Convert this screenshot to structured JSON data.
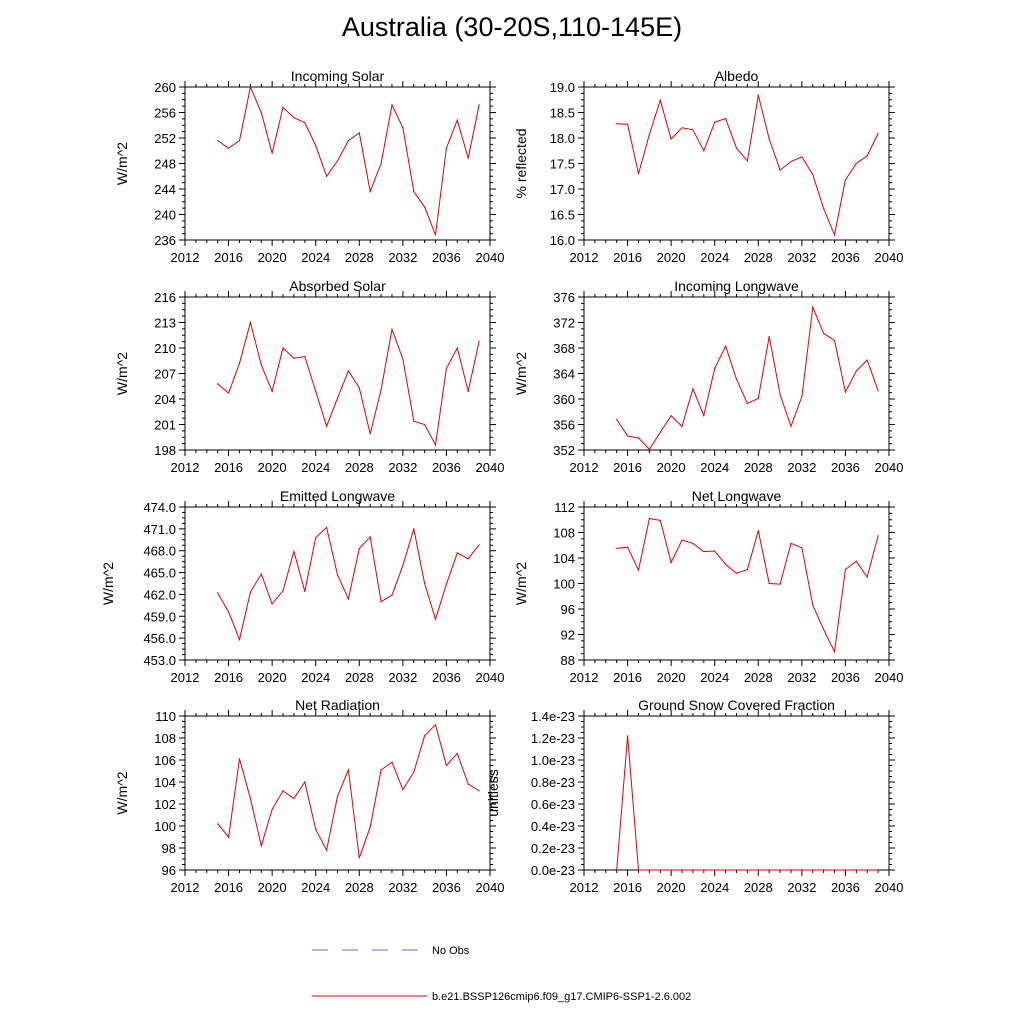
{
  "figure_title": "Australia (30-20S,110-145E)",
  "legend": {
    "obs_label": "No Obs",
    "model_label": "b.e21.BSSP126cmip6.f09_g17.CMIP6-SSP1-2.6.002",
    "obs_color": "#6a6ad8",
    "model_color": "#e00000"
  },
  "chart_data": [
    {
      "id": "incoming-solar",
      "type": "line",
      "title": "Incoming Solar",
      "ylabel": "W/m^2",
      "xlim": [
        2012,
        2040
      ],
      "ylim": [
        236,
        260
      ],
      "x_ticks": [
        2012,
        2016,
        2020,
        2024,
        2028,
        2032,
        2036,
        2040
      ],
      "y_ticks": [
        "236",
        "240",
        "244",
        "248",
        "252",
        "256",
        "260"
      ],
      "x": [
        2015,
        2016,
        2017,
        2018,
        2019,
        2020,
        2021,
        2022,
        2023,
        2024,
        2025,
        2026,
        2027,
        2028,
        2029,
        2030,
        2031,
        2032,
        2033,
        2034,
        2035,
        2036,
        2037,
        2038,
        2039
      ],
      "series": [
        {
          "values": [
            251.6,
            250.4,
            251.6,
            260.0,
            256.0,
            249.6,
            256.8,
            255.2,
            254.4,
            250.8,
            246.0,
            248.4,
            251.6,
            252.8,
            243.6,
            248.0,
            257.2,
            253.6,
            243.6,
            241.2,
            236.8,
            250.4,
            254.8,
            248.8,
            257.2
          ]
        }
      ]
    },
    {
      "id": "albedo",
      "type": "line",
      "title": "Albedo",
      "ylabel": "% reflected",
      "xlim": [
        2012,
        2040
      ],
      "ylim": [
        16.0,
        19.0
      ],
      "x_ticks": [
        2012,
        2016,
        2020,
        2024,
        2028,
        2032,
        2036,
        2040
      ],
      "y_ticks": [
        "16.0",
        "16.5",
        "17.0",
        "17.5",
        "18.0",
        "18.5",
        "19.0"
      ],
      "x": [
        2015,
        2016,
        2017,
        2018,
        2019,
        2020,
        2021,
        2022,
        2023,
        2024,
        2025,
        2026,
        2027,
        2028,
        2029,
        2030,
        2031,
        2032,
        2033,
        2034,
        2035,
        2036,
        2037,
        2038,
        2039
      ],
      "series": [
        {
          "values": [
            18.28,
            18.27,
            17.3,
            18.07,
            18.74,
            17.98,
            18.2,
            18.16,
            17.75,
            18.31,
            18.38,
            17.8,
            17.55,
            18.84,
            17.98,
            17.37,
            17.54,
            17.63,
            17.28,
            16.62,
            16.1,
            17.18,
            17.5,
            17.65,
            18.09
          ]
        }
      ]
    },
    {
      "id": "absorbed-solar",
      "type": "line",
      "title": "Absorbed Solar",
      "ylabel": "W/m^2",
      "xlim": [
        2012,
        2040
      ],
      "ylim": [
        198,
        216
      ],
      "x_ticks": [
        2012,
        2016,
        2020,
        2024,
        2028,
        2032,
        2036,
        2040
      ],
      "y_ticks": [
        "198",
        "201",
        "204",
        "207",
        "210",
        "213",
        "216"
      ],
      "x": [
        2015,
        2016,
        2017,
        2018,
        2019,
        2020,
        2021,
        2022,
        2023,
        2024,
        2025,
        2026,
        2027,
        2028,
        2029,
        2030,
        2031,
        2032,
        2033,
        2034,
        2035,
        2036,
        2037,
        2038,
        2039
      ],
      "series": [
        {
          "values": [
            205.8,
            204.7,
            208.2,
            213.0,
            208.0,
            204.9,
            210.0,
            208.8,
            209.0,
            204.9,
            200.8,
            204.1,
            207.3,
            205.3,
            199.9,
            205.1,
            212.2,
            208.7,
            201.4,
            201.0,
            198.6,
            207.6,
            210.0,
            204.9,
            210.8
          ]
        }
      ]
    },
    {
      "id": "incoming-longwave",
      "type": "line",
      "title": "Incoming Longwave",
      "ylabel": "W/m^2",
      "xlim": [
        2012,
        2040
      ],
      "ylim": [
        352,
        376
      ],
      "x_ticks": [
        2012,
        2016,
        2020,
        2024,
        2028,
        2032,
        2036,
        2040
      ],
      "y_ticks": [
        "352",
        "356",
        "360",
        "364",
        "368",
        "372",
        "376"
      ],
      "x": [
        2015,
        2016,
        2017,
        2018,
        2019,
        2020,
        2021,
        2022,
        2023,
        2024,
        2025,
        2026,
        2027,
        2028,
        2029,
        2030,
        2031,
        2032,
        2033,
        2034,
        2035,
        2036,
        2037,
        2038,
        2039
      ],
      "series": [
        {
          "values": [
            356.8,
            354.2,
            353.9,
            352.1,
            354.8,
            357.4,
            355.7,
            361.6,
            357.4,
            364.8,
            368.3,
            363.1,
            359.3,
            360.1,
            369.8,
            360.7,
            355.7,
            360.4,
            374.4,
            370.3,
            369.2,
            361.1,
            364.4,
            366.1,
            361.3
          ]
        }
      ]
    },
    {
      "id": "emitted-longwave",
      "type": "line",
      "title": "Emitted Longwave",
      "ylabel": "W/m^2",
      "xlim": [
        2012,
        2040
      ],
      "ylim": [
        453.0,
        474.0
      ],
      "x_ticks": [
        2012,
        2016,
        2020,
        2024,
        2028,
        2032,
        2036,
        2040
      ],
      "y_ticks": [
        "453.0",
        "456.0",
        "459.0",
        "462.0",
        "465.0",
        "468.0",
        "471.0",
        "474.0"
      ],
      "x": [
        2015,
        2016,
        2017,
        2018,
        2019,
        2020,
        2021,
        2022,
        2023,
        2024,
        2025,
        2026,
        2027,
        2028,
        2029,
        2030,
        2031,
        2032,
        2033,
        2034,
        2035,
        2036,
        2037,
        2038,
        2039
      ],
      "series": [
        {
          "values": [
            462.2,
            459.6,
            455.8,
            462.3,
            464.8,
            460.7,
            462.5,
            467.9,
            462.4,
            469.8,
            471.2,
            464.7,
            461.4,
            468.3,
            469.9,
            461.0,
            461.9,
            466.0,
            471.0,
            463.5,
            458.6,
            463.4,
            467.7,
            466.9,
            468.8
          ]
        }
      ]
    },
    {
      "id": "net-longwave",
      "type": "line",
      "title": "Net Longwave",
      "ylabel": "W/m^2",
      "xlim": [
        2012,
        2040
      ],
      "ylim": [
        88,
        112
      ],
      "x_ticks": [
        2012,
        2016,
        2020,
        2024,
        2028,
        2032,
        2036,
        2040
      ],
      "y_ticks": [
        "88",
        "92",
        "96",
        "100",
        "104",
        "108",
        "112"
      ],
      "x": [
        2015,
        2016,
        2017,
        2018,
        2019,
        2020,
        2021,
        2022,
        2023,
        2024,
        2025,
        2026,
        2027,
        2028,
        2029,
        2030,
        2031,
        2032,
        2033,
        2034,
        2035,
        2036,
        2037,
        2038,
        2039
      ],
      "series": [
        {
          "values": [
            105.5,
            105.7,
            102.1,
            110.2,
            109.9,
            103.3,
            106.8,
            106.3,
            105.0,
            105.1,
            103.0,
            101.6,
            102.2,
            108.3,
            100.0,
            99.9,
            106.3,
            105.6,
            96.6,
            92.8,
            89.3,
            102.2,
            103.5,
            101.0,
            107.5
          ]
        }
      ]
    },
    {
      "id": "net-radiation",
      "type": "line",
      "title": "Net Radiation",
      "ylabel": "W/m^2",
      "xlim": [
        2012,
        2040
      ],
      "ylim": [
        96,
        110
      ],
      "x_ticks": [
        2012,
        2016,
        2020,
        2024,
        2028,
        2032,
        2036,
        2040
      ],
      "y_ticks": [
        "96",
        "98",
        "100",
        "102",
        "104",
        "106",
        "108",
        "110"
      ],
      "x": [
        2015,
        2016,
        2017,
        2018,
        2019,
        2020,
        2021,
        2022,
        2023,
        2024,
        2025,
        2026,
        2027,
        2028,
        2029,
        2030,
        2031,
        2032,
        2033,
        2034,
        2035,
        2036,
        2037,
        2038,
        2039
      ],
      "series": [
        {
          "values": [
            100.2,
            99.0,
            106.1,
            102.5,
            98.2,
            101.5,
            103.2,
            102.5,
            104.0,
            99.7,
            97.8,
            102.7,
            105.1,
            97.1,
            99.9,
            105.1,
            105.8,
            103.3,
            104.9,
            108.2,
            109.2,
            105.5,
            106.6,
            103.8,
            103.2
          ]
        }
      ]
    },
    {
      "id": "ground-snow-covered-fraction",
      "type": "line",
      "title": "Ground Snow Covered Fraction",
      "ylabel": "unitless",
      "xlim": [
        2012,
        2040
      ],
      "ylim": [
        0.0,
        1.4
      ],
      "x_ticks": [
        2012,
        2016,
        2020,
        2024,
        2028,
        2032,
        2036,
        2040
      ],
      "y_ticks": [
        "0.0e-23",
        "0.2e-23",
        "0.4e-23",
        "0.6e-23",
        "0.8e-23",
        "1.0e-23",
        "1.2e-23",
        "1.4e-23"
      ],
      "y_units_note": "1e-23",
      "x": [
        2015,
        2016,
        2017,
        2018,
        2019,
        2020,
        2021,
        2022,
        2023,
        2024,
        2025,
        2026,
        2027,
        2028,
        2029,
        2030,
        2031,
        2032,
        2033,
        2034,
        2035,
        2036,
        2037,
        2038,
        2039
      ],
      "series": [
        {
          "values": [
            0.0,
            1.22,
            0.0,
            0.0,
            0.0,
            0.0,
            0.0,
            0.0,
            0.0,
            0.0,
            0.0,
            0.0,
            0.0,
            0.0,
            0.0,
            0.0,
            0.0,
            0.0,
            0.0,
            0.0,
            0.0,
            0.0,
            0.0,
            0.0,
            0.0
          ]
        }
      ]
    }
  ]
}
